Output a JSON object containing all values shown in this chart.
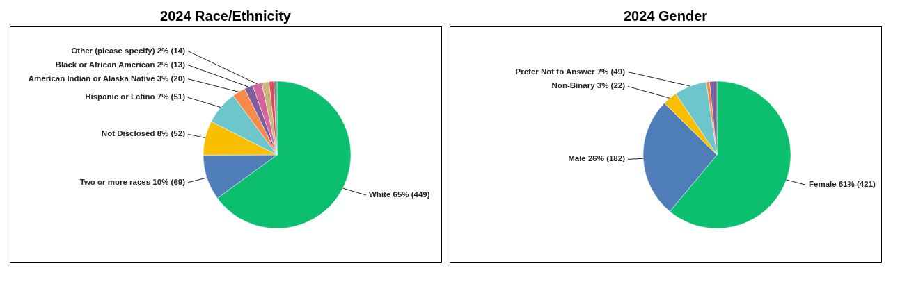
{
  "chart_data": [
    {
      "type": "pie",
      "title": "2024 Race/Ethnicity",
      "categories": [
        "White",
        "Two or more races",
        "Not Disclosed",
        "Hispanic or Latino",
        "American Indian or Alaska Native",
        "Black or African American",
        "Other (please specify)",
        null,
        null,
        null
      ],
      "values": [
        449,
        69,
        52,
        51,
        20,
        13,
        14,
        11,
        7,
        5
      ],
      "value_labels": [
        "65% (449)",
        "10% (69)",
        "8% (52)",
        "7% (51)",
        "3% (20)",
        "2% (13)",
        "2% (14)",
        null,
        null,
        null
      ],
      "colors": [
        "#0bbf6e",
        "#4f7db8",
        "#f9be00",
        "#6cc6cc",
        "#f7894a",
        "#7c5f9c",
        "#d5649a",
        "#c8b679",
        "#e0485a",
        "#7f8c8d"
      ]
    },
    {
      "type": "pie",
      "title": "2024 Gender",
      "categories": [
        "Female",
        "Male",
        "Non-Binary",
        "Prefer Not to Answer",
        null,
        null
      ],
      "values": [
        421,
        182,
        22,
        49,
        5,
        11
      ],
      "value_labels": [
        "61% (421)",
        "26% (182)",
        "3% (22)",
        "7% (49)",
        null,
        null
      ],
      "colors": [
        "#0bbf6e",
        "#4f7db8",
        "#f9be00",
        "#6cc6cc",
        "#f7894a",
        "#7c5f9c"
      ]
    }
  ]
}
